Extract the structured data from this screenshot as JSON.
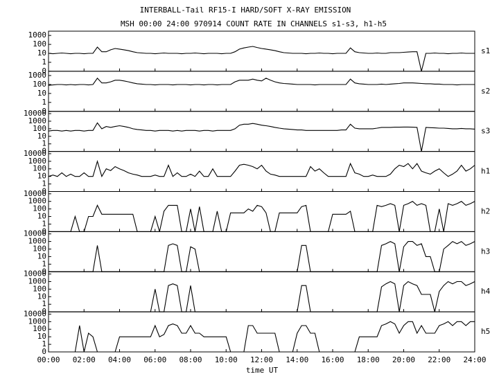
{
  "chart_data": {
    "type": "line",
    "title": "INTERBALL-Tail RF15-I HARD/SOFT X-RAY EMISSION",
    "subtitle": "MSH 00:00 24:00 970914  COUNT RATE IN CHANNELS s1-s3, h1-h5",
    "xlabel": "time UT",
    "yscale": "symlog",
    "xlim": [
      0,
      24
    ],
    "xticks": [
      {
        "value": 0,
        "label": "00:00"
      },
      {
        "value": 2,
        "label": "02:00"
      },
      {
        "value": 4,
        "label": "04:00"
      },
      {
        "value": 6,
        "label": "06:00"
      },
      {
        "value": 8,
        "label": "08:00"
      },
      {
        "value": 10,
        "label": "10:00"
      },
      {
        "value": 12,
        "label": "12:00"
      },
      {
        "value": 14,
        "label": "14:00"
      },
      {
        "value": 16,
        "label": "16:00"
      },
      {
        "value": 18,
        "label": "18:00"
      },
      {
        "value": 20,
        "label": "20:00"
      },
      {
        "value": 22,
        "label": "22:00"
      },
      {
        "value": 24,
        "label": "24:00"
      }
    ],
    "x": [
      0,
      0.25,
      0.5,
      0.75,
      1,
      1.25,
      1.5,
      1.75,
      2,
      2.25,
      2.5,
      2.75,
      3,
      3.25,
      3.5,
      3.75,
      4,
      4.25,
      4.5,
      4.75,
      5,
      5.25,
      5.5,
      5.75,
      6,
      6.25,
      6.5,
      6.75,
      7,
      7.25,
      7.5,
      7.75,
      8,
      8.25,
      8.5,
      8.75,
      9,
      9.25,
      9.5,
      9.75,
      10,
      10.25,
      10.5,
      10.75,
      11,
      11.25,
      11.5,
      11.75,
      12,
      12.25,
      12.5,
      12.75,
      13,
      13.25,
      13.5,
      13.75,
      14,
      14.25,
      14.5,
      14.75,
      15,
      15.25,
      15.5,
      15.75,
      16,
      16.25,
      16.5,
      16.75,
      17,
      17.25,
      17.5,
      17.75,
      18,
      18.25,
      18.5,
      18.75,
      19,
      19.25,
      19.5,
      19.75,
      20,
      20.25,
      20.5,
      20.75,
      21,
      21.25,
      21.5,
      21.75,
      22,
      22.25,
      22.5,
      22.75,
      23,
      23.25,
      23.5,
      23.75,
      24
    ],
    "series": [
      {
        "name": "s1",
        "color": "#000000",
        "ylim": [
          0,
          3000
        ],
        "yticks": [
          0,
          1,
          10,
          100,
          1000
        ],
        "values": [
          10,
          9,
          10,
          11,
          10,
          9,
          10,
          10,
          9,
          10,
          10,
          50,
          15,
          15,
          25,
          35,
          30,
          25,
          20,
          15,
          12,
          11,
          10,
          10,
          9,
          10,
          11,
          10,
          10,
          10,
          9,
          10,
          10,
          11,
          10,
          9,
          10,
          10,
          10,
          9,
          10,
          10,
          15,
          30,
          40,
          50,
          60,
          45,
          35,
          30,
          25,
          20,
          15,
          12,
          11,
          10,
          10,
          10,
          9,
          10,
          10,
          11,
          10,
          10,
          9,
          10,
          10,
          10,
          40,
          15,
          12,
          11,
          10,
          10,
          11,
          10,
          10,
          12,
          12,
          12,
          13,
          14,
          15,
          15,
          0,
          10,
          10,
          11,
          10,
          10,
          9,
          10,
          10,
          11,
          10,
          10,
          10
        ]
      },
      {
        "name": "s2",
        "color": "#000000",
        "ylim": [
          0,
          3000
        ],
        "yticks": [
          0,
          1,
          10,
          100,
          1000
        ],
        "values": [
          80,
          90,
          100,
          100,
          90,
          100,
          90,
          100,
          100,
          90,
          100,
          500,
          150,
          150,
          200,
          300,
          300,
          250,
          200,
          150,
          120,
          110,
          100,
          100,
          90,
          100,
          100,
          100,
          90,
          100,
          100,
          100,
          90,
          100,
          100,
          90,
          100,
          100,
          90,
          100,
          100,
          100,
          200,
          300,
          300,
          300,
          400,
          300,
          250,
          500,
          300,
          200,
          150,
          130,
          120,
          110,
          100,
          100,
          100,
          100,
          90,
          100,
          100,
          100,
          100,
          100,
          100,
          100,
          400,
          150,
          120,
          110,
          100,
          100,
          100,
          110,
          100,
          110,
          120,
          130,
          150,
          150,
          150,
          140,
          130,
          120,
          120,
          110,
          110,
          100,
          100,
          100,
          90,
          100,
          100,
          100,
          100
        ]
      },
      {
        "name": "s3",
        "color": "#000000",
        "ylim": [
          0,
          20000
        ],
        "yticks": [
          0,
          1,
          10,
          100,
          1000,
          10000
        ],
        "values": [
          50,
          60,
          60,
          50,
          60,
          50,
          60,
          60,
          50,
          60,
          60,
          600,
          100,
          200,
          150,
          200,
          250,
          200,
          150,
          100,
          80,
          70,
          60,
          60,
          50,
          60,
          60,
          60,
          50,
          60,
          50,
          60,
          60,
          60,
          50,
          60,
          60,
          50,
          60,
          60,
          60,
          60,
          100,
          300,
          400,
          400,
          500,
          400,
          300,
          250,
          200,
          150,
          120,
          100,
          90,
          80,
          70,
          70,
          60,
          60,
          60,
          60,
          60,
          60,
          60,
          60,
          70,
          70,
          400,
          120,
          100,
          100,
          100,
          100,
          120,
          150,
          150,
          150,
          160,
          160,
          170,
          170,
          160,
          150,
          0,
          150,
          140,
          130,
          120,
          120,
          110,
          100,
          100,
          110,
          100,
          100,
          90
        ]
      },
      {
        "name": "h1",
        "color": "#000000",
        "ylim": [
          0,
          20000
        ],
        "yticks": [
          0,
          1,
          10,
          100,
          1000,
          10000
        ],
        "values": [
          10,
          15,
          10,
          30,
          10,
          20,
          10,
          10,
          30,
          10,
          10,
          1000,
          10,
          100,
          60,
          200,
          100,
          60,
          30,
          20,
          15,
          10,
          10,
          10,
          15,
          10,
          10,
          300,
          10,
          30,
          10,
          10,
          20,
          10,
          50,
          10,
          10,
          100,
          10,
          10,
          10,
          10,
          50,
          300,
          400,
          300,
          200,
          100,
          300,
          50,
          20,
          15,
          10,
          10,
          10,
          10,
          10,
          10,
          10,
          200,
          50,
          100,
          30,
          10,
          10,
          10,
          10,
          10,
          500,
          30,
          20,
          10,
          10,
          15,
          10,
          10,
          10,
          20,
          100,
          300,
          200,
          500,
          100,
          500,
          50,
          30,
          20,
          50,
          100,
          30,
          10,
          20,
          50,
          300,
          50,
          100,
          300
        ]
      },
      {
        "name": "h2",
        "color": "#000000",
        "ylim": [
          0,
          20000
        ],
        "yticks": [
          0,
          1,
          10,
          100,
          1000,
          10000
        ],
        "values": [
          0,
          0,
          0,
          0,
          0,
          0,
          10,
          0,
          0,
          10,
          10,
          300,
          20,
          20,
          20,
          20,
          20,
          20,
          20,
          20,
          0,
          0,
          0,
          0,
          10,
          0,
          50,
          300,
          300,
          300,
          0,
          0,
          100,
          0,
          200,
          0,
          0,
          0,
          50,
          0,
          0,
          30,
          30,
          30,
          30,
          100,
          50,
          300,
          200,
          30,
          0,
          0,
          30,
          30,
          30,
          30,
          30,
          200,
          300,
          0,
          0,
          0,
          0,
          0,
          20,
          20,
          20,
          20,
          50,
          0,
          0,
          0,
          0,
          0,
          300,
          200,
          300,
          500,
          300,
          0,
          300,
          500,
          1000,
          300,
          500,
          300,
          0,
          0,
          100,
          0,
          500,
          300,
          500,
          1000,
          300,
          500,
          1000
        ]
      },
      {
        "name": "h3",
        "color": "#000000",
        "ylim": [
          0,
          20000
        ],
        "yticks": [
          0,
          1,
          10,
          100,
          1000,
          10000
        ],
        "values": [
          0,
          0,
          0,
          0,
          0,
          0,
          0,
          0,
          0,
          0,
          0,
          300,
          0,
          0,
          0,
          0,
          0,
          0,
          0,
          0,
          0,
          0,
          0,
          0,
          0,
          0,
          0,
          300,
          500,
          300,
          0,
          0,
          200,
          100,
          0,
          0,
          0,
          0,
          0,
          0,
          0,
          0,
          0,
          0,
          0,
          0,
          0,
          0,
          0,
          0,
          0,
          0,
          0,
          0,
          0,
          0,
          0,
          300,
          300,
          0,
          0,
          0,
          0,
          0,
          0,
          0,
          0,
          0,
          0,
          0,
          0,
          0,
          0,
          0,
          0,
          300,
          500,
          1000,
          500,
          0,
          200,
          1000,
          1000,
          300,
          500,
          10,
          10,
          0,
          0,
          100,
          300,
          1000,
          500,
          1000,
          300,
          500,
          1000
        ]
      },
      {
        "name": "h4",
        "color": "#000000",
        "ylim": [
          0,
          20000
        ],
        "yticks": [
          0,
          1,
          10,
          100,
          1000,
          10000
        ],
        "values": [
          0,
          0,
          0,
          0,
          0,
          0,
          0,
          0,
          0,
          0,
          0,
          0,
          0,
          0,
          0,
          0,
          0,
          0,
          0,
          0,
          0,
          0,
          0,
          0,
          100,
          0,
          0,
          300,
          500,
          300,
          0,
          0,
          300,
          0,
          0,
          0,
          0,
          0,
          0,
          0,
          0,
          0,
          0,
          0,
          0,
          0,
          0,
          0,
          0,
          0,
          0,
          0,
          0,
          0,
          0,
          0,
          0,
          300,
          300,
          0,
          0,
          0,
          0,
          0,
          0,
          0,
          0,
          0,
          0,
          0,
          0,
          0,
          0,
          0,
          0,
          200,
          500,
          1000,
          500,
          0,
          300,
          1000,
          500,
          300,
          20,
          20,
          20,
          0,
          50,
          300,
          1000,
          500,
          1000,
          1000,
          300,
          500,
          1000
        ]
      },
      {
        "name": "h5",
        "color": "#000000",
        "ylim": [
          0,
          20000
        ],
        "yticks": [
          0,
          1,
          10,
          100,
          1000,
          10000
        ],
        "values": [
          0,
          0,
          0,
          0,
          0,
          0,
          0,
          300,
          0,
          30,
          10,
          0,
          0,
          0,
          0,
          0,
          10,
          10,
          10,
          10,
          10,
          10,
          10,
          10,
          300,
          10,
          20,
          300,
          500,
          300,
          30,
          30,
          300,
          30,
          30,
          10,
          10,
          10,
          10,
          10,
          10,
          0,
          0,
          0,
          0,
          300,
          300,
          30,
          30,
          30,
          30,
          30,
          0,
          0,
          0,
          0,
          30,
          300,
          300,
          30,
          30,
          0,
          0,
          0,
          0,
          0,
          0,
          0,
          0,
          0,
          10,
          10,
          10,
          10,
          10,
          300,
          500,
          1000,
          500,
          30,
          300,
          1000,
          1000,
          30,
          300,
          30,
          30,
          30,
          300,
          500,
          1000,
          300,
          1000,
          1000,
          300,
          1000,
          1000
        ]
      }
    ]
  }
}
